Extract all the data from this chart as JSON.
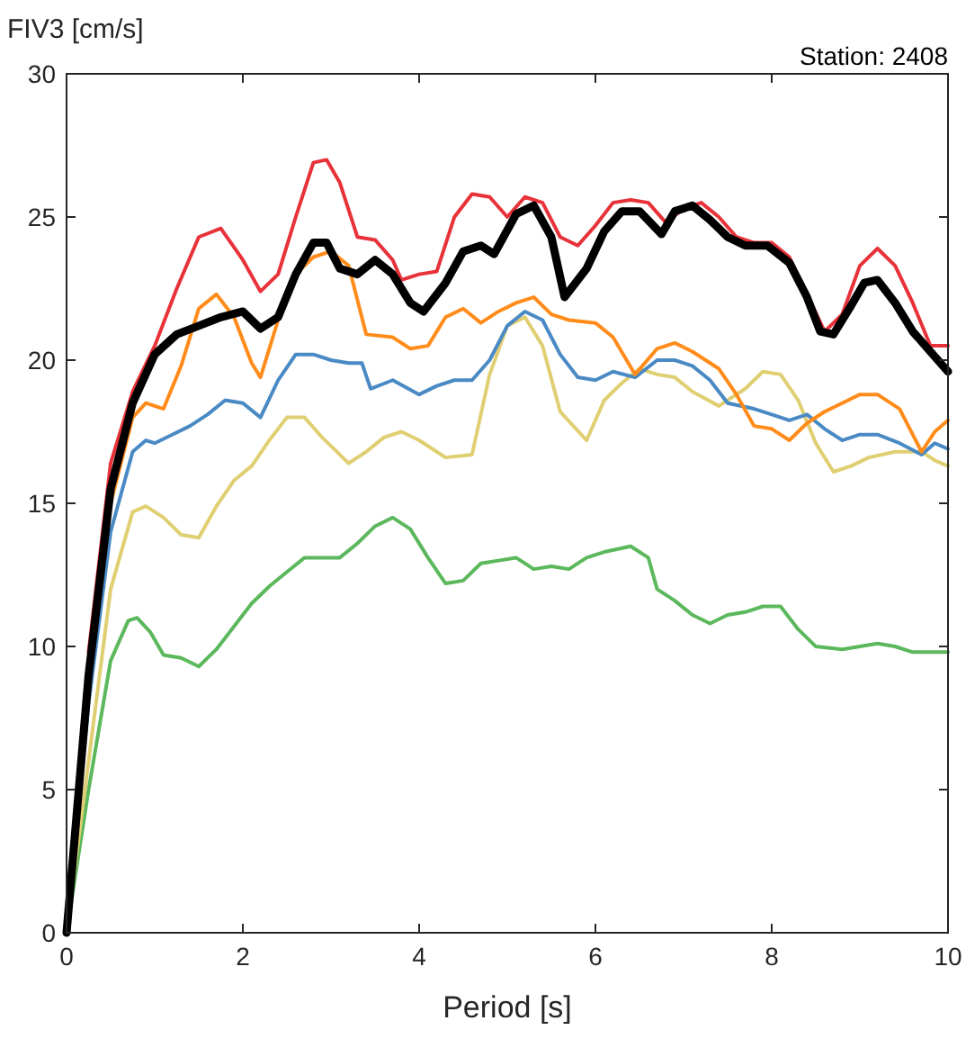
{
  "chart_data": {
    "type": "line",
    "ylabel": "FIV3 [cm/s]",
    "xlabel": "Period [s]",
    "annotations": [
      "Station: 2408"
    ],
    "xlim": [
      0,
      10
    ],
    "ylim": [
      0,
      30
    ],
    "xticks": [
      0,
      2,
      4,
      6,
      8,
      10
    ],
    "yticks": [
      0,
      5,
      10,
      15,
      20,
      25,
      30
    ],
    "grid": false,
    "marker": "none",
    "line_style": "solid",
    "series": [
      {
        "color": "#5cb85c",
        "x": [
          0,
          0.25,
          0.5,
          0.7,
          0.8,
          0.95,
          1.1,
          1.3,
          1.5,
          1.7,
          1.9,
          2.1,
          2.3,
          2.5,
          2.7,
          2.9,
          3.1,
          3.3,
          3.5,
          3.7,
          3.9,
          4.1,
          4.3,
          4.5,
          4.7,
          4.9,
          5.1,
          5.3,
          5.5,
          5.7,
          5.9,
          6.1,
          6.4,
          6.6,
          6.7,
          6.9,
          7.1,
          7.3,
          7.5,
          7.7,
          7.9,
          8.1,
          8.3,
          8.5,
          8.8,
          9.0,
          9.2,
          9.4,
          9.6,
          9.8,
          10
        ],
        "values": [
          0,
          5,
          9.5,
          10.9,
          11,
          10.5,
          9.7,
          9.6,
          9.3,
          9.9,
          10.7,
          11.5,
          12.1,
          12.6,
          13.1,
          13.1,
          13.1,
          13.6,
          14.2,
          14.5,
          14.1,
          13.1,
          12.2,
          12.3,
          12.9,
          13,
          13.1,
          12.7,
          12.8,
          12.7,
          13.1,
          13.3,
          13.5,
          13.1,
          12,
          11.6,
          11.1,
          10.8,
          11.1,
          11.2,
          11.4,
          11.4,
          10.6,
          10,
          9.9,
          10,
          10.1,
          10,
          9.8,
          9.8,
          9.8
        ]
      },
      {
        "color": "#e0cf72",
        "x": [
          0,
          0.25,
          0.5,
          0.75,
          0.9,
          1.1,
          1.3,
          1.5,
          1.7,
          1.9,
          2.1,
          2.3,
          2.5,
          2.7,
          2.9,
          3.1,
          3.2,
          3.4,
          3.6,
          3.8,
          4.0,
          4.2,
          4.3,
          4.6,
          4.8,
          5.0,
          5.2,
          5.4,
          5.6,
          5.9,
          6.1,
          6.3,
          6.5,
          6.7,
          6.9,
          7.1,
          7.4,
          7.7,
          7.9,
          8.1,
          8.3,
          8.5,
          8.7,
          8.9,
          9.1,
          9.4,
          9.7,
          9.85,
          10
        ],
        "values": [
          0,
          6,
          12,
          14.7,
          14.9,
          14.5,
          13.9,
          13.8,
          14.9,
          15.8,
          16.3,
          17.2,
          18,
          18,
          17.3,
          16.7,
          16.4,
          16.8,
          17.3,
          17.5,
          17.2,
          16.8,
          16.6,
          16.7,
          19.5,
          21.2,
          21.5,
          20.5,
          18.2,
          17.2,
          18.6,
          19.2,
          19.7,
          19.5,
          19.4,
          18.9,
          18.4,
          19,
          19.6,
          19.5,
          18.6,
          17.1,
          16.1,
          16.3,
          16.6,
          16.8,
          16.8,
          16.5,
          16.3
        ]
      },
      {
        "color": "#4a8ac4",
        "x": [
          0,
          0.25,
          0.5,
          0.75,
          0.9,
          1.0,
          1.2,
          1.4,
          1.6,
          1.8,
          2.0,
          2.2,
          2.4,
          2.6,
          2.8,
          3.0,
          3.2,
          3.35,
          3.45,
          3.7,
          4.0,
          4.2,
          4.4,
          4.6,
          4.8,
          5.0,
          5.2,
          5.4,
          5.6,
          5.8,
          6.0,
          6.2,
          6.45,
          6.7,
          6.9,
          7.1,
          7.3,
          7.5,
          7.8,
          8.0,
          8.2,
          8.4,
          8.6,
          8.8,
          9.0,
          9.2,
          9.45,
          9.7,
          9.85,
          10
        ],
        "values": [
          0,
          8,
          14,
          16.8,
          17.2,
          17.1,
          17.4,
          17.7,
          18.1,
          18.6,
          18.5,
          18,
          19.3,
          20.2,
          20.2,
          20,
          19.9,
          19.9,
          19,
          19.3,
          18.8,
          19.1,
          19.3,
          19.3,
          20,
          21.2,
          21.7,
          21.4,
          20.2,
          19.4,
          19.3,
          19.6,
          19.4,
          20,
          20,
          19.8,
          19.3,
          18.5,
          18.3,
          18.1,
          17.9,
          18.1,
          17.6,
          17.2,
          17.4,
          17.4,
          17.1,
          16.7,
          17.1,
          16.9
        ]
      },
      {
        "color": "#ff8c1a",
        "x": [
          0,
          0.25,
          0.5,
          0.75,
          0.9,
          1.1,
          1.3,
          1.5,
          1.7,
          1.9,
          2.1,
          2.2,
          2.4,
          2.6,
          2.8,
          3.0,
          3.2,
          3.4,
          3.7,
          3.9,
          4.1,
          4.3,
          4.5,
          4.7,
          4.9,
          5.1,
          5.3,
          5.5,
          5.7,
          6.0,
          6.2,
          6.45,
          6.7,
          6.9,
          7.1,
          7.4,
          7.6,
          7.8,
          8.0,
          8.2,
          8.4,
          8.6,
          8.8,
          9.0,
          9.2,
          9.45,
          9.7,
          9.85,
          10
        ],
        "values": [
          0,
          8.5,
          15,
          18,
          18.5,
          18.3,
          19.8,
          21.8,
          22.3,
          21.5,
          19.9,
          19.4,
          21.4,
          23,
          23.6,
          23.8,
          23.3,
          20.9,
          20.8,
          20.4,
          20.5,
          21.5,
          21.8,
          21.3,
          21.7,
          22,
          22.2,
          21.6,
          21.4,
          21.3,
          20.8,
          19.5,
          20.4,
          20.6,
          20.3,
          19.7,
          18.8,
          17.7,
          17.6,
          17.2,
          17.8,
          18.2,
          18.5,
          18.8,
          18.8,
          18.3,
          16.8,
          17.5,
          17.9
        ]
      },
      {
        "color": "#e8323a",
        "x": [
          0.25,
          0.5,
          0.75,
          1,
          1.25,
          1.5,
          1.75,
          2,
          2.2,
          2.4,
          2.6,
          2.8,
          2.95,
          3.1,
          3.3,
          3.5,
          3.7,
          3.8,
          4,
          4.2,
          4.4,
          4.6,
          4.8,
          5,
          5.2,
          5.4,
          5.6,
          5.8,
          6,
          6.2,
          6.4,
          6.6,
          6.8,
          7,
          7.2,
          7.4,
          7.6,
          7.8,
          8,
          8.2,
          8.4,
          8.6,
          8.8,
          9,
          9.2,
          9.4,
          9.6,
          9.8,
          10
        ],
        "values": [
          9.8,
          16.4,
          18.9,
          20.5,
          22.5,
          24.3,
          24.6,
          23.5,
          22.4,
          23,
          25,
          26.9,
          27,
          26.2,
          24.3,
          24.2,
          23.5,
          22.8,
          23,
          23.1,
          25,
          25.8,
          25.7,
          25,
          25.7,
          25.5,
          24.3,
          24,
          24.7,
          25.5,
          25.6,
          25.5,
          24.8,
          25.3,
          25.5,
          25,
          24.3,
          24.1,
          24.1,
          23.6,
          22.3,
          21,
          21.6,
          23.3,
          23.9,
          23.3,
          22,
          20.5,
          20.5
        ]
      },
      {
        "color": "#000000",
        "x": [
          0,
          0.25,
          0.5,
          0.75,
          1,
          1.25,
          1.5,
          1.75,
          2,
          2.2,
          2.4,
          2.6,
          2.8,
          2.95,
          3.1,
          3.3,
          3.5,
          3.7,
          3.9,
          4.05,
          4.3,
          4.5,
          4.7,
          4.85,
          5.1,
          5.3,
          5.5,
          5.65,
          5.9,
          6.1,
          6.3,
          6.5,
          6.75,
          6.9,
          7.1,
          7.3,
          7.5,
          7.7,
          7.95,
          8.2,
          8.4,
          8.55,
          8.7,
          8.9,
          9.05,
          9.2,
          9.4,
          9.6,
          9.8,
          10
        ],
        "values": [
          0,
          9,
          15.5,
          18.5,
          20.2,
          20.9,
          21.2,
          21.5,
          21.7,
          21.1,
          21.5,
          23,
          24.1,
          24.1,
          23.2,
          23,
          23.5,
          23,
          22,
          21.7,
          22.7,
          23.8,
          24,
          23.7,
          25.1,
          25.4,
          24.3,
          22.2,
          23.2,
          24.5,
          25.2,
          25.2,
          24.4,
          25.2,
          25.4,
          24.9,
          24.3,
          24,
          24,
          23.4,
          22.2,
          21,
          20.9,
          21.9,
          22.7,
          22.8,
          22,
          21,
          20.3,
          19.6
        ]
      }
    ]
  }
}
